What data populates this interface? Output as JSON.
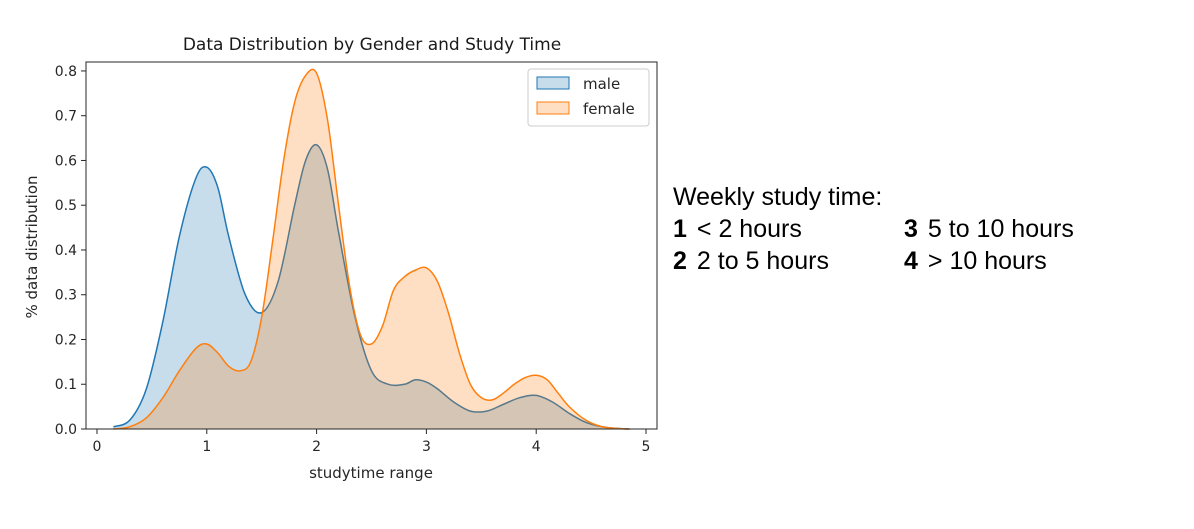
{
  "chart_data": {
    "type": "area",
    "title": "Data Distribution by Gender and Study Time",
    "xlabel": "studytime range",
    "ylabel": "% data distribution",
    "xlim": [
      -0.1,
      5.1
    ],
    "ylim": [
      0,
      0.82
    ],
    "xticks": [
      "0",
      "1",
      "2",
      "3",
      "4",
      "5"
    ],
    "yticks": [
      "0.0",
      "0.1",
      "0.2",
      "0.3",
      "0.4",
      "0.5",
      "0.6",
      "0.7",
      "0.8"
    ],
    "legend_position": "top-right",
    "series": [
      {
        "name": "male",
        "color": "#1f77b4",
        "x": [
          0.15,
          0.3,
          0.45,
          0.6,
          0.75,
          0.9,
          1.0,
          1.1,
          1.2,
          1.35,
          1.5,
          1.65,
          1.8,
          1.9,
          2.0,
          2.1,
          2.2,
          2.35,
          2.5,
          2.65,
          2.8,
          2.9,
          3.0,
          3.1,
          3.25,
          3.4,
          3.55,
          3.7,
          3.85,
          4.0,
          4.15,
          4.3,
          4.45,
          4.6,
          4.75,
          4.85
        ],
        "values": [
          0.005,
          0.02,
          0.09,
          0.24,
          0.43,
          0.56,
          0.585,
          0.54,
          0.43,
          0.3,
          0.26,
          0.33,
          0.5,
          0.6,
          0.635,
          0.58,
          0.44,
          0.25,
          0.13,
          0.1,
          0.1,
          0.11,
          0.105,
          0.09,
          0.06,
          0.04,
          0.04,
          0.055,
          0.07,
          0.075,
          0.06,
          0.035,
          0.015,
          0.005,
          0.001,
          0.0
        ]
      },
      {
        "name": "female",
        "color": "#ff7f0e",
        "x": [
          0.15,
          0.3,
          0.45,
          0.6,
          0.75,
          0.9,
          1.0,
          1.1,
          1.2,
          1.3,
          1.4,
          1.5,
          1.6,
          1.7,
          1.8,
          1.9,
          2.0,
          2.1,
          2.2,
          2.3,
          2.4,
          2.5,
          2.6,
          2.7,
          2.8,
          2.9,
          3.0,
          3.1,
          3.2,
          3.3,
          3.4,
          3.5,
          3.6,
          3.7,
          3.8,
          3.9,
          4.0,
          4.1,
          4.2,
          4.3,
          4.45,
          4.6,
          4.75,
          4.85
        ],
        "values": [
          0.0,
          0.005,
          0.025,
          0.07,
          0.13,
          0.18,
          0.19,
          0.17,
          0.14,
          0.13,
          0.15,
          0.25,
          0.42,
          0.6,
          0.73,
          0.79,
          0.795,
          0.69,
          0.5,
          0.32,
          0.21,
          0.19,
          0.23,
          0.31,
          0.34,
          0.355,
          0.36,
          0.33,
          0.26,
          0.17,
          0.1,
          0.07,
          0.065,
          0.08,
          0.1,
          0.115,
          0.12,
          0.11,
          0.08,
          0.05,
          0.02,
          0.005,
          0.001,
          0.0
        ]
      }
    ]
  },
  "key": {
    "heading": "Weekly study time:",
    "rows": [
      [
        {
          "num": "1",
          "text": "< 2 hours"
        },
        {
          "num": "3",
          "text": "5 to 10 hours"
        }
      ],
      [
        {
          "num": "2",
          "text": "2 to 5 hours"
        },
        {
          "num": "4",
          "text": "> 10 hours"
        }
      ]
    ]
  }
}
